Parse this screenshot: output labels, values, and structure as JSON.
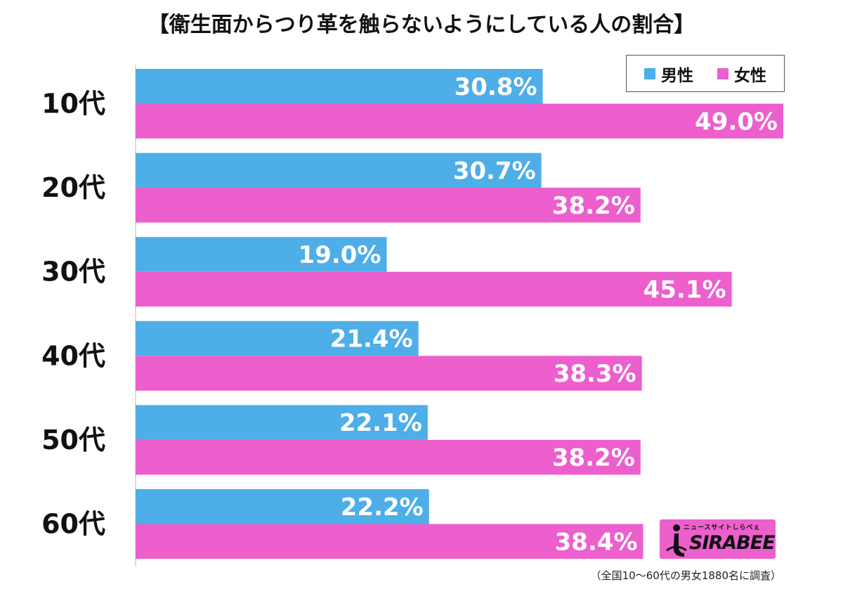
{
  "title": "【衛生面からつり革を触らないようにしている人の割合】",
  "legend": [
    {
      "label": "男性",
      "color": "#4daee8"
    },
    {
      "label": "女性",
      "color": "#ec5fcd"
    }
  ],
  "chart_data": {
    "type": "bar",
    "orientation": "horizontal",
    "title": "【衛生面からつり革を触らないようにしている人の割合】",
    "categories": [
      "10代",
      "20代",
      "30代",
      "40代",
      "50代",
      "60代"
    ],
    "series": [
      {
        "name": "男性",
        "color": "#4daee8",
        "values": [
          30.8,
          30.7,
          19.0,
          21.4,
          22.1,
          22.2
        ]
      },
      {
        "name": "女性",
        "color": "#ec5fcd",
        "values": [
          49.0,
          38.2,
          45.1,
          38.3,
          38.2,
          38.4
        ]
      }
    ],
    "value_labels": {
      "男性": [
        "30.8%",
        "30.7%",
        "19.0%",
        "21.4%",
        "22.1%",
        "22.2%"
      ],
      "女性": [
        "49.0%",
        "38.2%",
        "45.1%",
        "38.3%",
        "38.2%",
        "38.4%"
      ]
    },
    "xlim": [
      0,
      50
    ],
    "grid": false,
    "legend_position": "top-right"
  },
  "logo": {
    "tagline": "ニュースサイトしらべぇ",
    "wordmark": "SIRABEE"
  },
  "footnote": "（全国10〜60代の男女1880名に調査）"
}
